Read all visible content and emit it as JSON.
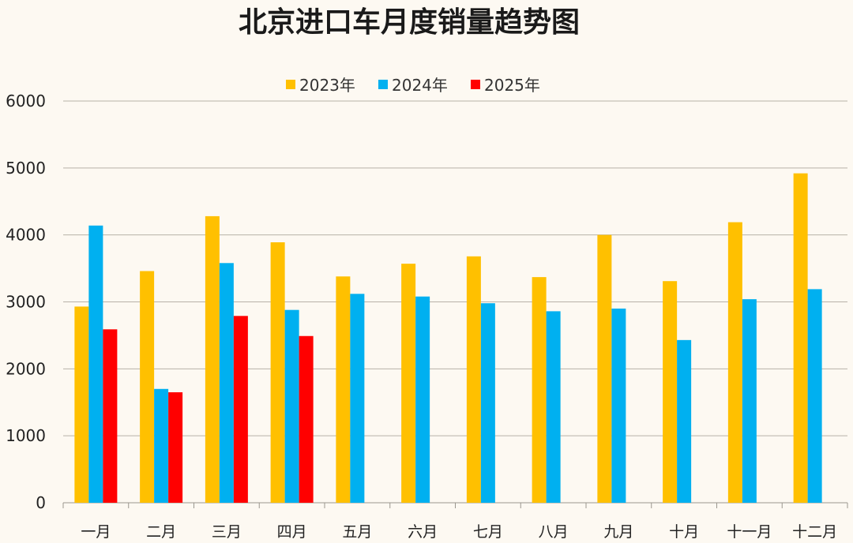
{
  "chart_data": {
    "type": "bar",
    "title": "北京进口车月度销量趋势图",
    "xlabel": "",
    "ylabel": "",
    "categories": [
      "一月",
      "二月",
      "三月",
      "四月",
      "五月",
      "六月",
      "七月",
      "八月",
      "九月",
      "十月",
      "十一月",
      "十二月"
    ],
    "series": [
      {
        "name": "2023年",
        "color": "#ffc000",
        "values": [
          2930,
          3460,
          4280,
          3890,
          3380,
          3570,
          3680,
          3370,
          4000,
          3310,
          4190,
          4920
        ]
      },
      {
        "name": "2024年",
        "color": "#00b0f0",
        "values": [
          4140,
          1700,
          3580,
          2880,
          3120,
          3080,
          2980,
          2860,
          2900,
          2430,
          3040,
          3190
        ]
      },
      {
        "name": "2025年",
        "color": "#ff0000",
        "values": [
          2590,
          1650,
          2790,
          2490,
          null,
          null,
          null,
          null,
          null,
          null,
          null,
          null
        ]
      }
    ],
    "ylim": [
      0,
      6000
    ],
    "yticks": [
      0,
      1000,
      2000,
      3000,
      4000,
      5000,
      6000
    ],
    "grid": true,
    "legend_position": "top-center"
  }
}
